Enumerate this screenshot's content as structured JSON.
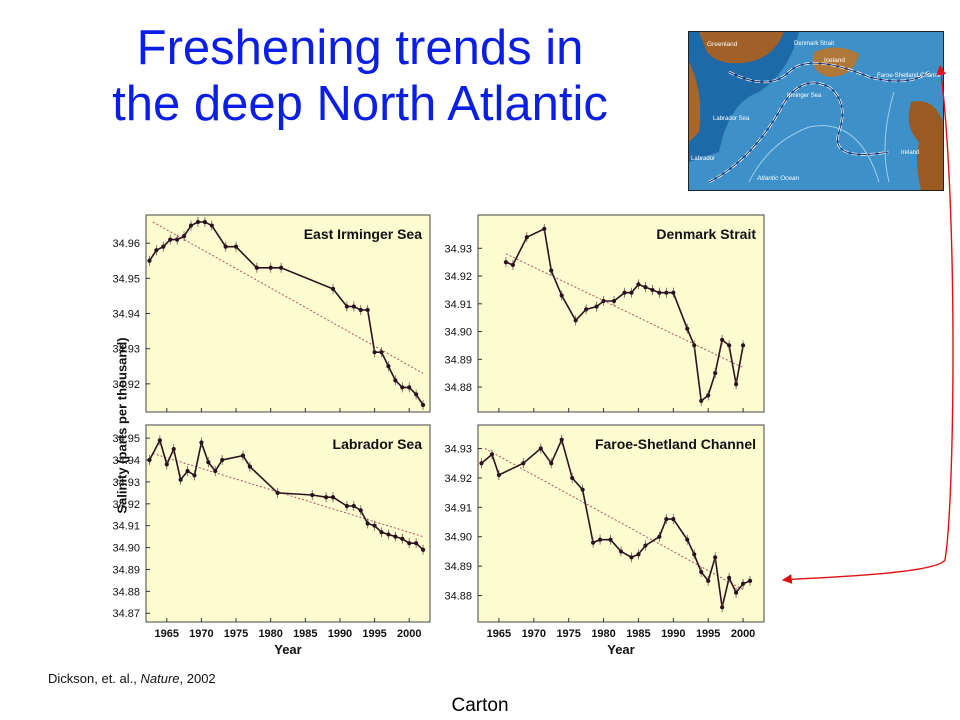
{
  "slide": {
    "title_line1": "Freshening trends in",
    "title_line2": "the deep North Atlantic",
    "citation_authors": "Dickson, et. al., ",
    "citation_journal": "Nature",
    "citation_year": ", 2002",
    "author": "Carton"
  },
  "map": {
    "labels": [
      "Greenland",
      "Denmark Strait",
      "Iceland",
      "Faroe-Shetland Channel",
      "Irminger Sea",
      "Labrador Sea",
      "Labrador",
      "Ireland",
      "Atlantic Ocean"
    ]
  },
  "colors": {
    "title": "#0a1ee6",
    "panel_bg": "#fdfbd0",
    "series_line": "#2a1220",
    "trend_line": "#b0506a",
    "arrow": "#e01010"
  },
  "chart_data": {
    "type": "line",
    "ylabel": "Salinity (parts per thousand)",
    "xlabel": "Year",
    "xlim": [
      1962,
      2003
    ],
    "xticks": [
      1965,
      1970,
      1975,
      1980,
      1985,
      1990,
      1995,
      2000
    ],
    "panels": [
      {
        "title": "East Irminger Sea",
        "ylim": [
          34.912,
          34.968
        ],
        "yticks": [
          "34.96",
          "34.95",
          "34.94",
          "34.93",
          "34.92"
        ],
        "x": [
          1962.5,
          1963.5,
          1964.5,
          1965.5,
          1966.5,
          1967.5,
          1968.5,
          1969.5,
          1970.5,
          1971.5,
          1973.5,
          1975,
          1978,
          1980,
          1981.5,
          1989,
          1991,
          1992,
          1993,
          1994,
          1995,
          1996,
          1997,
          1998,
          1999,
          2000,
          2001,
          2002
        ],
        "y": [
          34.955,
          34.958,
          34.959,
          34.961,
          34.961,
          34.962,
          34.965,
          34.966,
          34.966,
          34.965,
          34.959,
          34.959,
          34.953,
          34.953,
          34.953,
          34.947,
          34.942,
          34.942,
          34.941,
          34.941,
          34.929,
          34.929,
          34.925,
          34.921,
          34.919,
          34.919,
          34.917,
          34.914
        ],
        "trend": [
          [
            1963,
            34.966
          ],
          [
            2002,
            34.923
          ]
        ]
      },
      {
        "title": "Denmark Strait",
        "ylim": [
          34.871,
          34.942
        ],
        "yticks": [
          "34.93",
          "34.92",
          "34.91",
          "34.90",
          "34.89",
          "34.88"
        ],
        "x": [
          1966,
          1967,
          1969,
          1971.5,
          1972.5,
          1974,
          1976,
          1977.5,
          1979,
          1980,
          1981.5,
          1983,
          1984,
          1985,
          1986,
          1987,
          1988,
          1989,
          1990,
          1992,
          1993,
          1994,
          1995,
          1996,
          1997,
          1998,
          1999,
          2000
        ],
        "y": [
          34.925,
          34.924,
          34.934,
          34.937,
          34.922,
          34.913,
          34.904,
          34.908,
          34.909,
          34.911,
          34.911,
          34.914,
          34.914,
          34.917,
          34.916,
          34.915,
          34.914,
          34.914,
          34.914,
          34.901,
          34.895,
          34.875,
          34.877,
          34.885,
          34.897,
          34.895,
          34.881,
          34.895
        ],
        "trend": [
          [
            1966,
            34.928
          ],
          [
            2000,
            34.887
          ]
        ]
      },
      {
        "title": "Labrador Sea",
        "ylim": [
          34.866,
          34.956
        ],
        "yticks": [
          "34.95",
          "34.94",
          "34.93",
          "34.92",
          "34.91",
          "34.90",
          "34.89",
          "34.88",
          "34.87"
        ],
        "x": [
          1962.5,
          1964,
          1965,
          1966,
          1967,
          1968,
          1969,
          1970,
          1971,
          1972,
          1973,
          1976,
          1977,
          1981,
          1986,
          1988,
          1989,
          1991,
          1992,
          1993,
          1994,
          1995,
          1996,
          1997,
          1998,
          1999,
          2000,
          2001,
          2002
        ],
        "y": [
          34.94,
          34.949,
          34.938,
          34.945,
          34.931,
          34.935,
          34.933,
          34.948,
          34.939,
          34.935,
          34.94,
          34.942,
          34.937,
          34.925,
          34.924,
          34.923,
          34.923,
          34.919,
          34.919,
          34.917,
          34.911,
          34.91,
          34.907,
          34.906,
          34.905,
          34.904,
          34.902,
          34.902,
          34.899
        ],
        "trend": [
          [
            1963,
            34.943
          ],
          [
            2002,
            34.905
          ]
        ]
      },
      {
        "title": "Faroe-Shetland Channel",
        "ylim": [
          34.871,
          34.938
        ],
        "yticks": [
          "34.93",
          "34.92",
          "34.91",
          "34.90",
          "34.89",
          "34.88"
        ],
        "x": [
          1962.5,
          1964,
          1965,
          1968.5,
          1971,
          1972.5,
          1974,
          1975.5,
          1977,
          1978.5,
          1979.5,
          1981,
          1982.5,
          1984,
          1985,
          1986,
          1988,
          1989,
          1990,
          1992,
          1993,
          1994,
          1995,
          1996,
          1997,
          1998,
          1999,
          2000,
          2001
        ],
        "y": [
          34.925,
          34.928,
          34.921,
          34.925,
          34.93,
          34.925,
          34.933,
          34.92,
          34.916,
          34.898,
          34.899,
          34.899,
          34.895,
          34.893,
          34.894,
          34.897,
          34.9,
          34.906,
          34.906,
          34.899,
          34.894,
          34.888,
          34.885,
          34.893,
          34.876,
          34.886,
          34.881,
          34.884,
          34.885
        ],
        "trend": [
          [
            1963,
            34.93
          ],
          [
            2000,
            34.882
          ]
        ]
      }
    ]
  }
}
